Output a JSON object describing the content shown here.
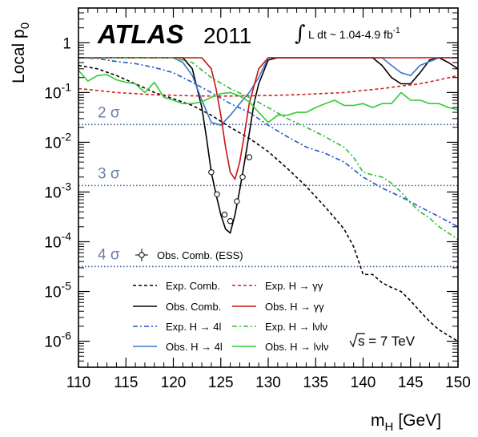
{
  "chart_data": {
    "type": "line",
    "xlabel_main": "m",
    "xlabel_sub": "H",
    "xlabel_unit": "[GeV]",
    "ylabel_main": "Local p",
    "ylabel_sub": "0",
    "xlim": [
      110,
      150
    ],
    "ylim": [
      3e-07,
      5
    ],
    "y_scale": "log",
    "x_ticks": [
      110,
      115,
      120,
      125,
      130,
      135,
      140,
      145,
      150
    ],
    "y_ticks": [
      {
        "value": 1,
        "base": "1",
        "exp": ""
      },
      {
        "value": 0.1,
        "base": "10",
        "exp": "-1"
      },
      {
        "value": 0.01,
        "base": "10",
        "exp": "-2"
      },
      {
        "value": 0.001,
        "base": "10",
        "exp": "-3"
      },
      {
        "value": 0.0001,
        "base": "10",
        "exp": "-4"
      },
      {
        "value": 1e-05,
        "base": "10",
        "exp": "-5"
      },
      {
        "value": 1e-06,
        "base": "10",
        "exp": "-6"
      }
    ],
    "experiment": "ATLAS",
    "year": "2011",
    "luminosity": "L dt ~ 1.04-4.9 fb",
    "luminosity_exp": "-1",
    "energy": "s = 7 TeV",
    "sigma_lines": [
      {
        "label": "2 σ",
        "p": 0.02275
      },
      {
        "label": "3 σ",
        "p": 0.00135
      },
      {
        "label": "4 σ",
        "p": 3.17e-05
      }
    ],
    "series": [
      {
        "name": "Exp. Comb.",
        "color": "#000000",
        "dash": "4,3",
        "x": [
          110,
          112,
          114,
          116,
          118,
          120,
          122,
          124,
          126,
          128,
          130,
          132,
          134,
          136,
          137,
          138,
          139,
          140,
          141,
          142,
          143,
          144,
          145,
          146,
          147,
          148,
          149,
          150
        ],
        "y": [
          0.35,
          0.3,
          0.22,
          0.15,
          0.1,
          0.075,
          0.055,
          0.035,
          0.02,
          0.012,
          0.0065,
          0.003,
          0.0013,
          0.0005,
          0.0003,
          0.00018,
          8e-05,
          2.2e-05,
          2.2e-05,
          1.5e-05,
          1.2e-05,
          1e-05,
          6.5e-06,
          4e-06,
          2.5e-06,
          1.7e-06,
          1.3e-06,
          1e-06
        ]
      },
      {
        "name": "Obs. Comb.",
        "color": "#000000",
        "dash": "",
        "x": [
          110,
          114,
          118,
          121,
          122,
          123,
          123.5,
          124,
          124.5,
          125,
          125.5,
          126,
          126.5,
          127,
          127.5,
          128,
          128.5,
          129,
          130,
          131,
          132,
          134,
          136,
          137,
          138,
          139,
          140,
          141,
          142,
          143,
          144,
          145,
          146,
          147,
          148,
          149,
          150
        ],
        "y": [
          0.5,
          0.5,
          0.5,
          0.5,
          0.3,
          0.05,
          0.012,
          0.0025,
          0.0009,
          0.00035,
          0.00018,
          0.00015,
          0.00035,
          0.0011,
          0.004,
          0.015,
          0.06,
          0.15,
          0.45,
          0.5,
          0.5,
          0.5,
          0.5,
          0.5,
          0.5,
          0.5,
          0.5,
          0.5,
          0.35,
          0.2,
          0.15,
          0.15,
          0.25,
          0.45,
          0.5,
          0.4,
          0.3
        ]
      },
      {
        "name": "Exp. H → 4l",
        "color": "#2255cc",
        "dash": "6,3,2,3",
        "x": [
          110,
          112,
          114,
          116,
          118,
          120,
          122,
          124,
          126,
          128,
          130,
          132,
          134,
          136,
          138,
          140,
          142,
          144,
          146,
          148,
          150
        ],
        "y": [
          0.5,
          0.48,
          0.42,
          0.38,
          0.32,
          0.25,
          0.16,
          0.1,
          0.06,
          0.04,
          0.022,
          0.013,
          0.008,
          0.006,
          0.004,
          0.002,
          0.0012,
          0.0008,
          0.0005,
          0.00032,
          0.0002
        ]
      },
      {
        "name": "Obs. H → 4l",
        "color": "#3a78c8",
        "dash": "",
        "x": [
          110,
          114,
          116,
          118,
          120,
          121,
          122,
          123,
          124,
          125,
          126,
          127,
          128,
          129,
          130,
          132,
          136,
          140,
          142,
          143,
          144,
          145,
          146,
          148,
          150
        ],
        "y": [
          0.5,
          0.5,
          0.5,
          0.5,
          0.5,
          0.4,
          0.22,
          0.07,
          0.025,
          0.022,
          0.035,
          0.06,
          0.1,
          0.2,
          0.5,
          0.5,
          0.5,
          0.5,
          0.5,
          0.35,
          0.25,
          0.22,
          0.35,
          0.5,
          0.5
        ]
      },
      {
        "name": "Exp. H → γγ",
        "color": "#cc2222",
        "dash": "4,3",
        "x": [
          110,
          112,
          114,
          116,
          118,
          120,
          122,
          124,
          126,
          128,
          130,
          132,
          134,
          136,
          138,
          140,
          142,
          144,
          146,
          148,
          150
        ],
        "y": [
          0.12,
          0.11,
          0.1,
          0.095,
          0.09,
          0.088,
          0.086,
          0.085,
          0.085,
          0.086,
          0.087,
          0.089,
          0.092,
          0.096,
          0.1,
          0.11,
          0.12,
          0.135,
          0.15,
          0.18,
          0.22
        ]
      },
      {
        "name": "Obs. H → γγ",
        "color": "#cc1111",
        "dash": "",
        "x": [
          110,
          114,
          118,
          122,
          123,
          124,
          124.5,
          125,
          125.5,
          126,
          126.5,
          127,
          127.5,
          128,
          129,
          130,
          132,
          136,
          140,
          144,
          148,
          150
        ],
        "y": [
          0.5,
          0.5,
          0.5,
          0.5,
          0.5,
          0.3,
          0.12,
          0.035,
          0.008,
          0.0025,
          0.0018,
          0.004,
          0.015,
          0.06,
          0.3,
          0.5,
          0.5,
          0.5,
          0.5,
          0.5,
          0.5,
          0.5
        ]
      },
      {
        "name": "Exp. H → lνlν",
        "color": "#33bb33",
        "dash": "6,3,2,3",
        "x": [
          110,
          114,
          116,
          118,
          120,
          122,
          124,
          126,
          128,
          130,
          132,
          134,
          136,
          137,
          138,
          139,
          140,
          141,
          142,
          143,
          144,
          145,
          146,
          147,
          148,
          149,
          150
        ],
        "y": [
          0.5,
          0.5,
          0.5,
          0.5,
          0.5,
          0.4,
          0.2,
          0.12,
          0.08,
          0.05,
          0.03,
          0.02,
          0.013,
          0.01,
          0.008,
          0.005,
          0.0025,
          0.0022,
          0.002,
          0.0015,
          0.001,
          0.0006,
          0.0004,
          0.0003,
          0.0002,
          0.00015,
          0.00011
        ]
      },
      {
        "name": "Obs. H → lνlν",
        "color": "#33cc33",
        "dash": "",
        "x": [
          110,
          111,
          112,
          113,
          114,
          115,
          116,
          117,
          118,
          119,
          120,
          121,
          122,
          123,
          124,
          125,
          126,
          127,
          128,
          129,
          130,
          131,
          132,
          133,
          134,
          135,
          136,
          137,
          138,
          139,
          140,
          141,
          142,
          143,
          144,
          145,
          146,
          147,
          148,
          149,
          150
        ],
        "y": [
          0.28,
          0.17,
          0.22,
          0.23,
          0.18,
          0.16,
          0.15,
          0.1,
          0.16,
          0.08,
          0.07,
          0.06,
          0.06,
          0.065,
          0.08,
          0.095,
          0.1,
          0.085,
          0.065,
          0.04,
          0.025,
          0.035,
          0.035,
          0.04,
          0.04,
          0.05,
          0.06,
          0.07,
          0.055,
          0.055,
          0.06,
          0.05,
          0.06,
          0.06,
          0.1,
          0.07,
          0.07,
          0.06,
          0.06,
          0.05,
          0.045
        ]
      }
    ],
    "ess_points": {
      "name": "Obs. Comb. (ESS)",
      "x": [
        124,
        124.6,
        125.4,
        126,
        126.7,
        127.3,
        128
      ],
      "y": [
        0.0025,
        0.0009,
        0.00035,
        0.00026,
        0.00065,
        0.002,
        0.005
      ]
    }
  }
}
